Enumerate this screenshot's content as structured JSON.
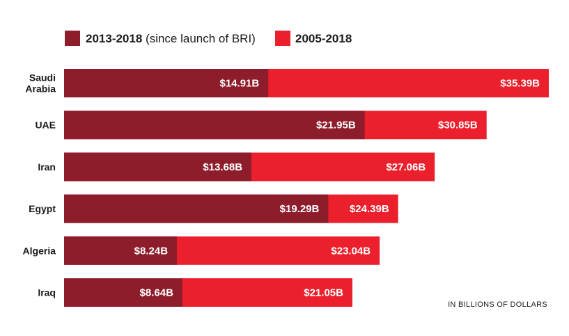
{
  "chart_data": {
    "type": "bar",
    "orientation": "horizontal",
    "stacked": "overlay",
    "categories": [
      [
        "Saudi",
        "Arabia"
      ],
      [
        "UAE"
      ],
      [
        "Iran"
      ],
      [
        "Egypt"
      ],
      [
        "Algeria"
      ],
      [
        "Iraq"
      ]
    ],
    "series": [
      {
        "name": "2005-2018",
        "color": "#ec1f2c",
        "values": [
          35.39,
          30.85,
          27.06,
          24.39,
          23.04,
          21.05
        ],
        "labels": [
          "$35.39B",
          "$30.85B",
          "$27.06B",
          "$24.39B",
          "$23.04B",
          "$21.05B"
        ]
      },
      {
        "name": "2013-2018",
        "color": "#8e1d2c",
        "values": [
          14.91,
          21.95,
          13.68,
          19.29,
          8.24,
          8.64
        ],
        "labels": [
          "$14.91B",
          "$21.95B",
          "$13.68B",
          "$19.29B",
          "$8.24B",
          "$8.64B"
        ]
      }
    ],
    "legend": [
      {
        "strong": "2013-2018",
        "rest": " (since launch of BRI)",
        "color": "#8e1d2c"
      },
      {
        "strong": "2005-2018",
        "rest": "",
        "color": "#ec1f2c"
      }
    ],
    "legend_position": "top-left",
    "note": "IN BILLIONS OF DOLLARS",
    "xlim": [
      0,
      35.39
    ],
    "grid": false
  }
}
